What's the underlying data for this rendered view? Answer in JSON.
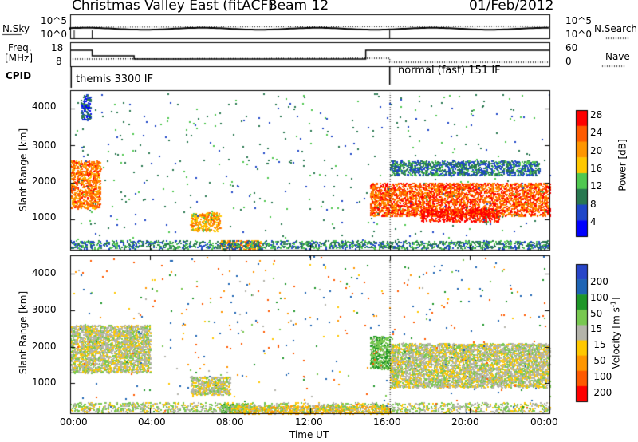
{
  "header": {
    "title": "Christmas Valley East (fitACF)",
    "beam": "Beam 12",
    "date": "01/Feb/2012"
  },
  "params": {
    "nsky_label": "N.Sky",
    "nsky_ticks": [
      "10^5",
      "10^0"
    ],
    "nsearch_label": "N.Search",
    "freq_label_1": "Freq.",
    "freq_label_2": "[MHz]",
    "freq_ticks": [
      "18",
      "8"
    ],
    "nave_label": "Nave",
    "nave_ticks": [
      "60",
      "0"
    ],
    "cpid_label": "CPID",
    "cpid_1": "themis 3300 IF",
    "cpid_2": "normal (fast) 151 IF"
  },
  "axes": {
    "ylabel": "Slant Range [km]",
    "xlabel": "Time UT",
    "yticks": [
      "4000",
      "3000",
      "2000",
      "1000"
    ],
    "xticks": [
      "00:00",
      "04:00",
      "08:00",
      "12:00",
      "16:00",
      "20:00",
      "00:00"
    ]
  },
  "colorbars": {
    "power": {
      "label": "Power [dB]",
      "ticks": [
        "28",
        "24",
        "20",
        "16",
        "12",
        "8",
        "4"
      ],
      "colors": [
        "#ff0000",
        "#ff5a00",
        "#ff9600",
        "#ffc800",
        "#50c850",
        "#287850",
        "#1e46c8",
        "#0000ff"
      ]
    },
    "velocity": {
      "label_main": "Velocity [m s",
      "label_sup": "-1",
      "label_end": "]",
      "ticks": [
        "200",
        "100",
        "50",
        "15",
        "-15",
        "-50",
        "-100",
        "-200"
      ],
      "colors": [
        "#2846c8",
        "#1e64b4",
        "#1e9628",
        "#78c850",
        "#b4b4aa",
        "#ffc800",
        "#ff9600",
        "#ff5a00",
        "#ff0000"
      ]
    }
  },
  "chart_data": {
    "type": "heatmap",
    "title": "Christmas Valley East (fitACF)",
    "xlabel": "Time UT",
    "ylabel": "Slant Range [km]",
    "xlim": [
      "00:00",
      "00:00"
    ],
    "ylim": [
      180,
      4500
    ],
    "panels": [
      "Power [dB]",
      "Velocity [m s-1]"
    ],
    "power_range_db": [
      0,
      30
    ],
    "velocity_range": [
      -250,
      250
    ],
    "power_regions": [
      {
        "start": "00:00",
        "end": "01:30",
        "range_km": [
          1300,
          2600
        ],
        "power_db": 22
      },
      {
        "start": "00:30",
        "end": "01:00",
        "range_km": [
          3700,
          4400
        ],
        "power_db": 5
      },
      {
        "start": "06:00",
        "end": "07:30",
        "range_km": [
          700,
          1200
        ],
        "power_db": 18
      },
      {
        "start": "07:30",
        "end": "09:30",
        "range_km": [
          200,
          450
        ],
        "power_db": 20
      },
      {
        "start": "15:00",
        "end": "00:00",
        "range_km": [
          1100,
          2000
        ],
        "power_db": 24
      },
      {
        "start": "17:30",
        "end": "21:30",
        "range_km": [
          950,
          1300
        ],
        "power_db": 28
      },
      {
        "start": "16:00",
        "end": "23:30",
        "range_km": [
          2200,
          2600
        ],
        "power_db": 7
      }
    ],
    "velocity_regions": [
      {
        "start": "00:00",
        "end": "04:00",
        "range_km": [
          1300,
          2600
        ],
        "velocity": 0
      },
      {
        "start": "06:00",
        "end": "08:00",
        "range_km": [
          700,
          1200
        ],
        "velocity": 0
      },
      {
        "start": "07:30",
        "end": "09:00",
        "range_km": [
          200,
          450
        ],
        "velocity": 40
      },
      {
        "start": "08:00",
        "end": "16:00",
        "range_km": [
          180,
          400
        ],
        "velocity": -40
      },
      {
        "start": "15:00",
        "end": "16:00",
        "range_km": [
          1400,
          2300
        ],
        "velocity": 40
      },
      {
        "start": "16:00",
        "end": "00:00",
        "range_km": [
          900,
          2100
        ],
        "velocity": 0
      }
    ]
  }
}
